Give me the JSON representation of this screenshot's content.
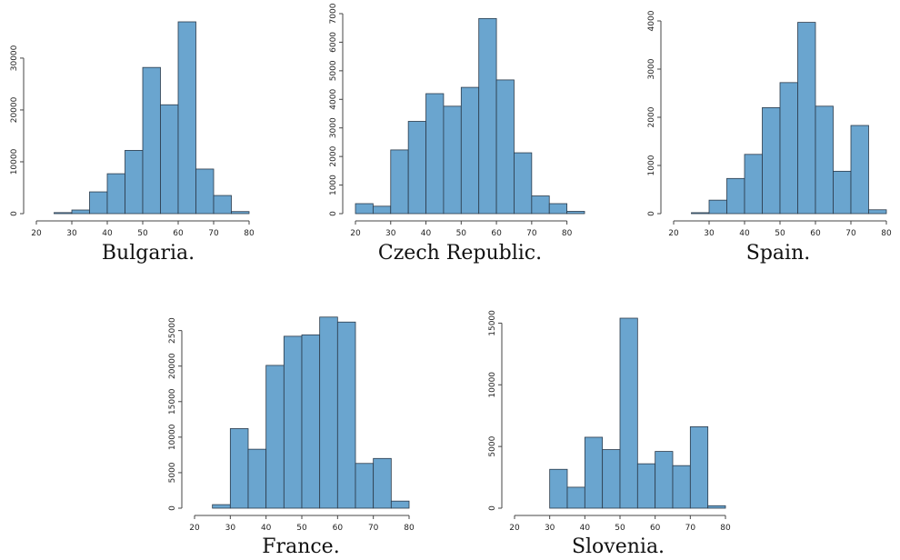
{
  "chart_data": [
    {
      "type": "histogram",
      "title": "Bulgaria.",
      "color": "#6aa5cf",
      "bins": [
        20,
        25,
        30,
        35,
        40,
        45,
        50,
        55,
        60,
        65,
        70,
        75,
        80
      ],
      "values": [
        0,
        200,
        700,
        4200,
        7700,
        12200,
        28200,
        21000,
        37000,
        8600,
        3500,
        400
      ],
      "xlim": [
        20,
        80
      ],
      "xticks": [
        20,
        30,
        40,
        50,
        60,
        70,
        80
      ],
      "ylim": [
        0,
        37000
      ],
      "yticks": [
        0,
        10000,
        20000,
        30000
      ]
    },
    {
      "type": "histogram",
      "title": "Czech Republic.",
      "color": "#6aa5cf",
      "bins": [
        20,
        25,
        30,
        35,
        40,
        45,
        50,
        55,
        60,
        65,
        70,
        75,
        80,
        85
      ],
      "values": [
        350,
        260,
        2230,
        3230,
        4200,
        3760,
        4420,
        6830,
        4680,
        2130,
        620,
        350,
        80
      ],
      "xlim": [
        20,
        85
      ],
      "xticks": [
        20,
        30,
        40,
        50,
        60,
        70,
        80
      ],
      "ylim": [
        0,
        7000
      ],
      "yticks": [
        0,
        1000,
        2000,
        3000,
        4000,
        5000,
        6000,
        7000
      ]
    },
    {
      "type": "histogram",
      "title": "Spain.",
      "color": "#6aa5cf",
      "bins": [
        20,
        25,
        30,
        35,
        40,
        45,
        50,
        55,
        60,
        65,
        70,
        75,
        80
      ],
      "values": [
        0,
        20,
        280,
        730,
        1230,
        2200,
        2720,
        3970,
        2230,
        880,
        1830,
        80
      ],
      "xlim": [
        20,
        80
      ],
      "xticks": [
        20,
        30,
        40,
        50,
        60,
        70,
        80
      ],
      "ylim": [
        0,
        4000
      ],
      "yticks": [
        0,
        1000,
        2000,
        3000,
        4000
      ]
    },
    {
      "type": "histogram",
      "title": "France.",
      "color": "#6aa5cf",
      "bins": [
        20,
        25,
        30,
        35,
        40,
        45,
        50,
        55,
        60,
        65,
        70,
        75,
        80
      ],
      "values": [
        0,
        500,
        11200,
        8300,
        20100,
        24200,
        24400,
        26900,
        26200,
        6300,
        7000,
        1000
      ],
      "xlim": [
        20,
        80
      ],
      "xticks": [
        20,
        30,
        40,
        50,
        60,
        70,
        80
      ],
      "ylim": [
        0,
        27000
      ],
      "yticks": [
        0,
        5000,
        10000,
        15000,
        20000,
        25000
      ]
    },
    {
      "type": "histogram",
      "title": "Slovenia.",
      "color": "#6aa5cf",
      "bins": [
        20,
        25,
        30,
        35,
        40,
        45,
        50,
        55,
        60,
        65,
        70,
        75,
        80
      ],
      "values": [
        0,
        0,
        3150,
        1700,
        5750,
        4750,
        15400,
        3600,
        4600,
        3450,
        6600,
        200
      ],
      "xlim": [
        20,
        80
      ],
      "xticks": [
        20,
        30,
        40,
        50,
        60,
        70,
        80
      ],
      "ylim": [
        0,
        15400
      ],
      "yticks": [
        0,
        5000,
        10000,
        15000
      ]
    }
  ]
}
